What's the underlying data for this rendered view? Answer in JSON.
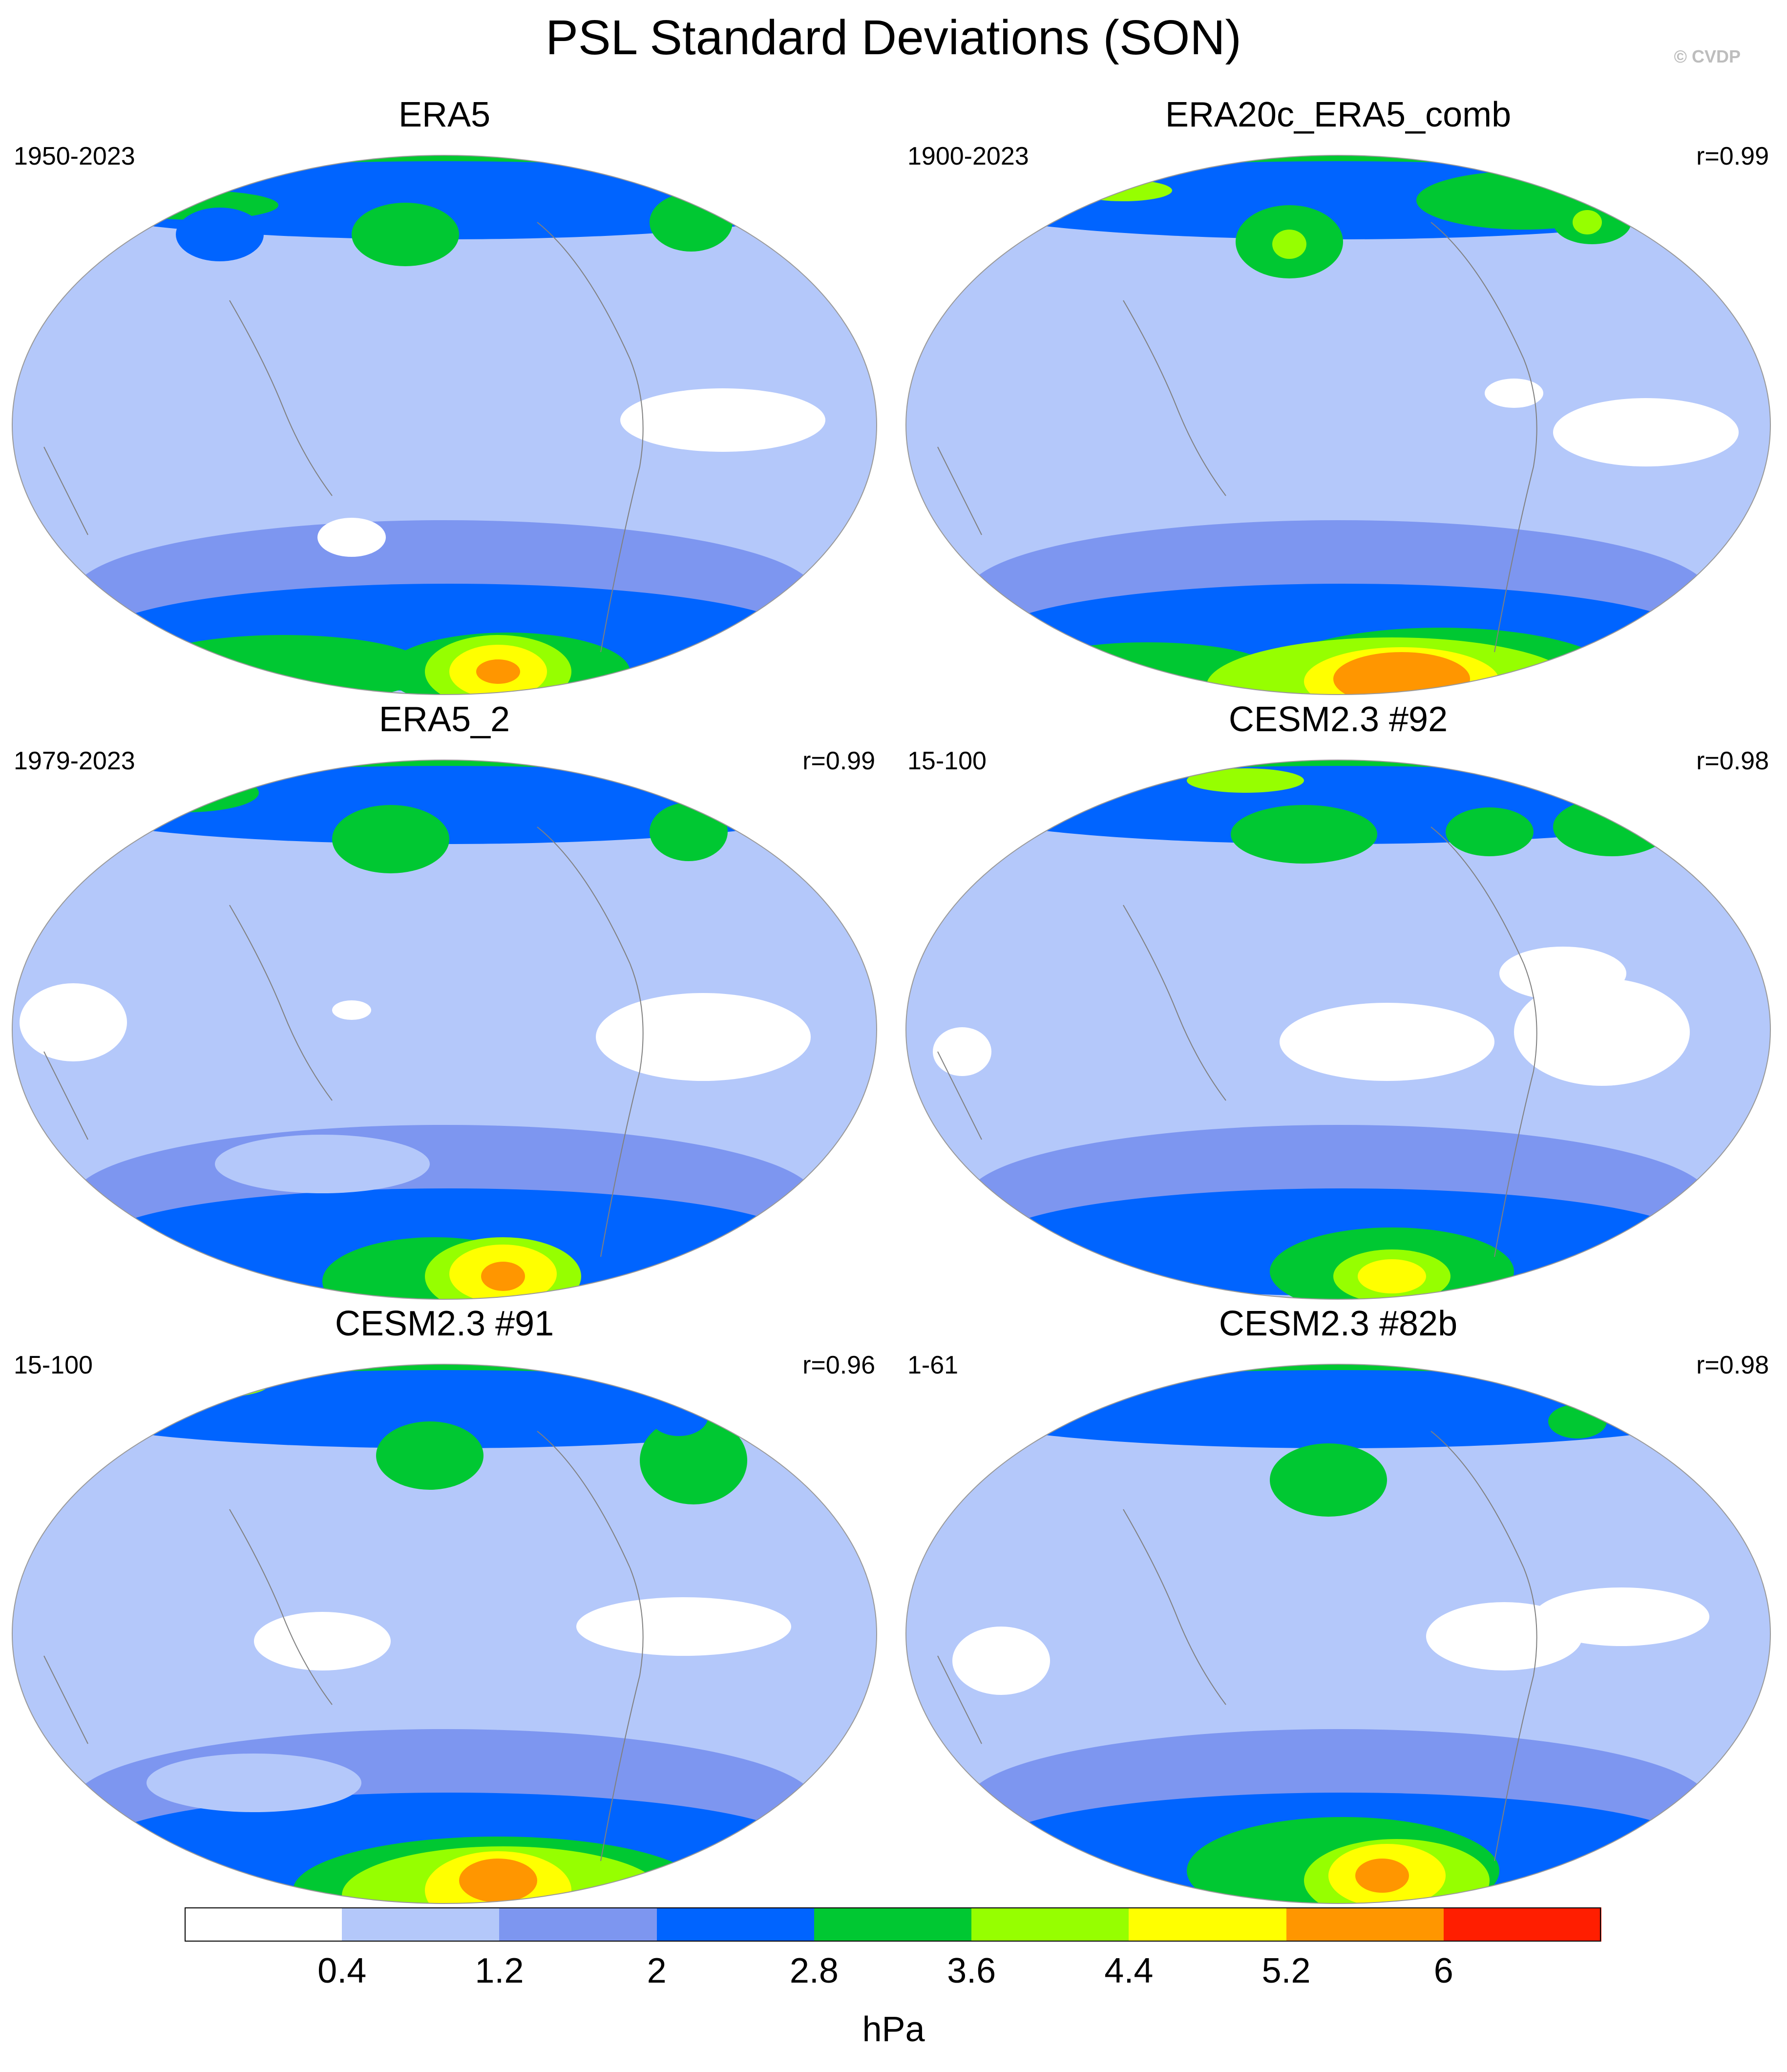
{
  "title": "PSL Standard Deviations (SON)",
  "credit": "© CVDP",
  "panels": [
    {
      "name": "ERA5",
      "period": "1950-2023",
      "corr": ""
    },
    {
      "name": "ERA20c_ERA5_comb",
      "period": "1900-2023",
      "corr": "r=0.99"
    },
    {
      "name": "ERA5_2",
      "period": "1979-2023",
      "corr": "r=0.99"
    },
    {
      "name": "CESM2.3 #92",
      "period": "15-100",
      "corr": "r=0.98"
    },
    {
      "name": "CESM2.3 #91",
      "period": "15-100",
      "corr": "r=0.96"
    },
    {
      "name": "CESM2.3 #82b",
      "period": "1-61",
      "corr": "r=0.98"
    }
  ],
  "colorbar": {
    "units": "hPa",
    "tick_labels": [
      "0.4",
      "1.2",
      "2",
      "2.8",
      "3.6",
      "4.4",
      "5.2",
      "6"
    ],
    "colors": [
      "#ffffff",
      "#b4c8fa",
      "#7d96f0",
      "#0064ff",
      "#00c832",
      "#96ff00",
      "#ffff00",
      "#ff9600",
      "#ff1e00"
    ]
  }
}
